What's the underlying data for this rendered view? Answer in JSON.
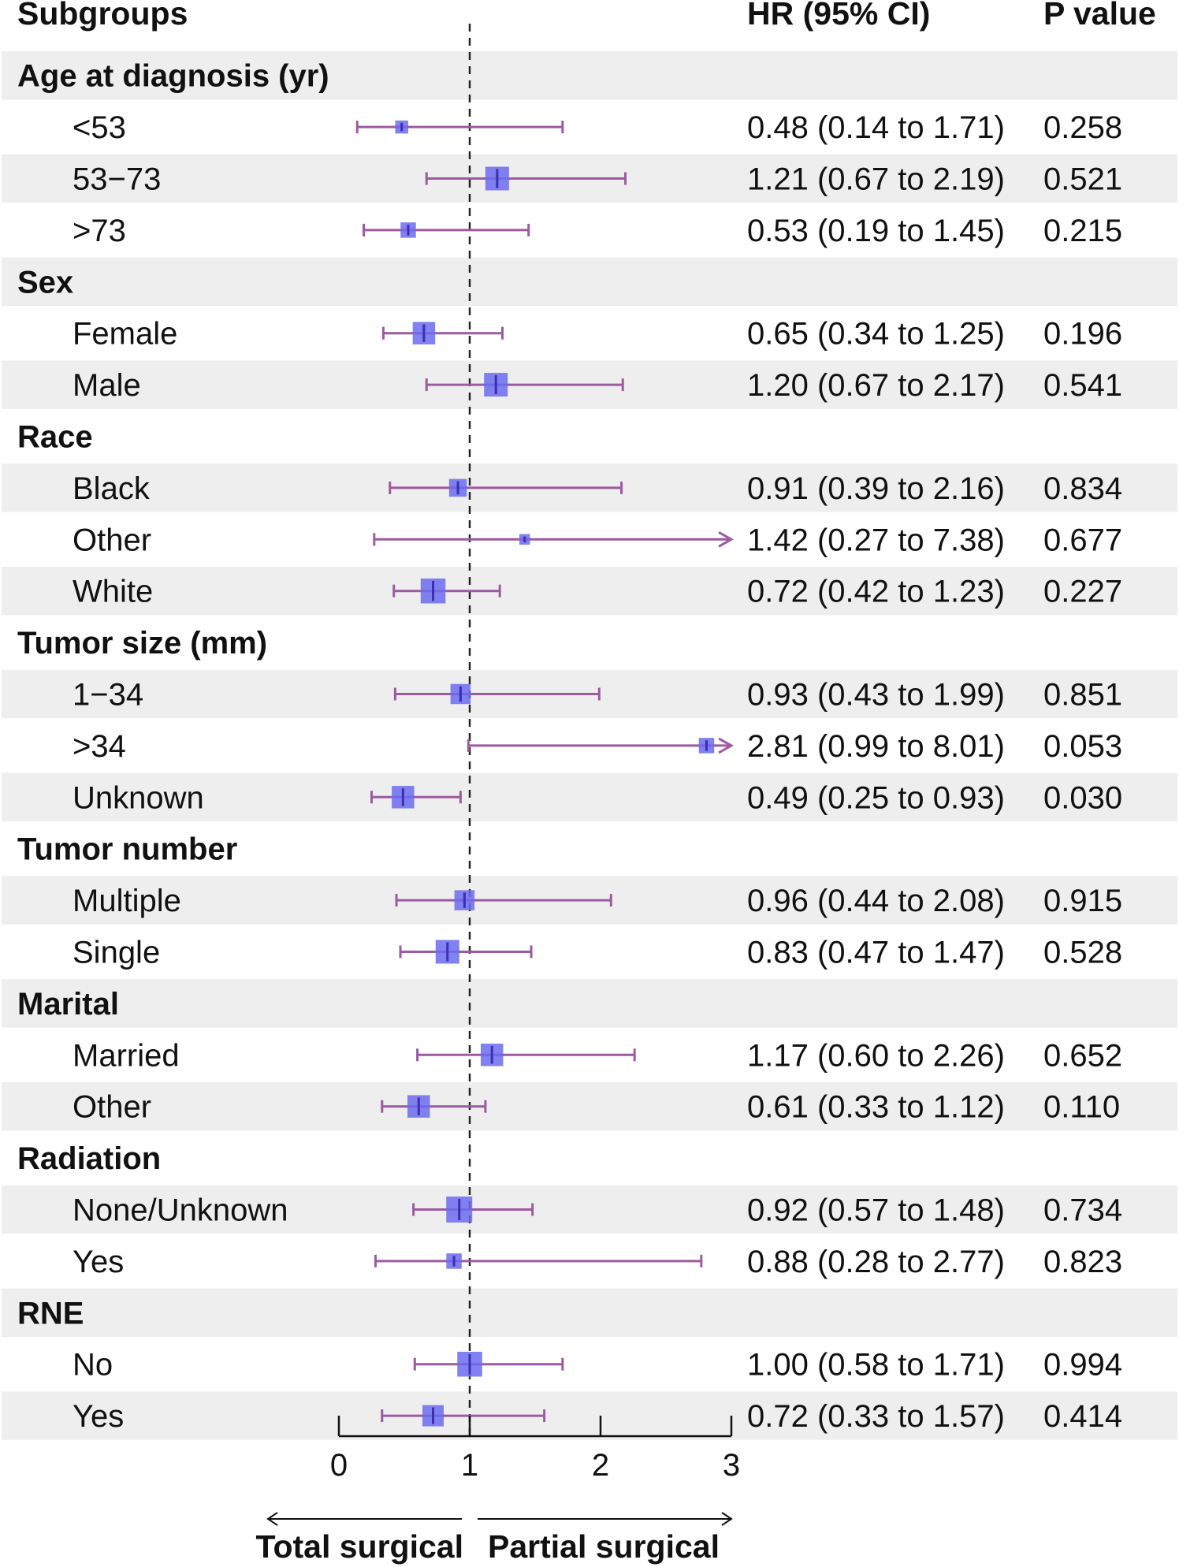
{
  "chart_data": {
    "type": "forest",
    "headers": {
      "subgroups": "Subgroups",
      "hr": "HR (95% CI)",
      "p": "P value"
    },
    "xlim": [
      0,
      3
    ],
    "ticks": [
      0,
      1,
      2,
      3
    ],
    "reference_line": 1,
    "direction_labels": {
      "left": "Total surgical",
      "right": "Partial surgical"
    },
    "colors": {
      "box": "#6b6bf0",
      "line": "#9c5aa0",
      "band": "#eeeeee",
      "text": "#111111"
    },
    "rows": [
      {
        "kind": "group",
        "label": "Age at diagnosis (yr)"
      },
      {
        "kind": "sub",
        "label": "<53",
        "hr": 0.48,
        "lo": 0.14,
        "hi": 1.71,
        "text": "0.48 (0.14 to 1.71)",
        "p": "0.258",
        "size": 0.55
      },
      {
        "kind": "sub",
        "label": "53−73",
        "hr": 1.21,
        "lo": 0.67,
        "hi": 2.19,
        "text": "1.21 (0.67 to 2.19)",
        "p": "0.521",
        "size": 1.0
      },
      {
        "kind": "sub",
        "label": ">73",
        "hr": 0.53,
        "lo": 0.19,
        "hi": 1.45,
        "text": "0.53 (0.19 to 1.45)",
        "p": "0.215",
        "size": 0.65
      },
      {
        "kind": "group",
        "label": "Sex"
      },
      {
        "kind": "sub",
        "label": "Female",
        "hr": 0.65,
        "lo": 0.34,
        "hi": 1.25,
        "text": "0.65 (0.34 to 1.25)",
        "p": "0.196",
        "size": 0.95
      },
      {
        "kind": "sub",
        "label": "Male",
        "hr": 1.2,
        "lo": 0.67,
        "hi": 2.17,
        "text": "1.20 (0.67 to 2.17)",
        "p": "0.541",
        "size": 1.0
      },
      {
        "kind": "group",
        "label": "Race"
      },
      {
        "kind": "sub",
        "label": "Black",
        "hr": 0.91,
        "lo": 0.39,
        "hi": 2.16,
        "text": "0.91 (0.39 to 2.16)",
        "p": "0.834",
        "size": 0.75
      },
      {
        "kind": "sub",
        "label": "Other",
        "hr": 1.42,
        "lo": 0.27,
        "hi": 7.38,
        "text": "1.42 (0.27 to 7.38)",
        "p": "0.677",
        "size": 0.45
      },
      {
        "kind": "sub",
        "label": "White",
        "hr": 0.72,
        "lo": 0.42,
        "hi": 1.23,
        "text": "0.72 (0.42 to 1.23)",
        "p": "0.227",
        "size": 1.05
      },
      {
        "kind": "group",
        "label": "Tumor size (mm)"
      },
      {
        "kind": "sub",
        "label": "1−34",
        "hr": 0.93,
        "lo": 0.43,
        "hi": 1.99,
        "text": "0.93 (0.43 to 1.99)",
        "p": "0.851",
        "size": 0.85
      },
      {
        "kind": "sub",
        "label": ">34",
        "hr": 2.81,
        "lo": 0.99,
        "hi": 8.01,
        "text": "2.81 (0.99 to 8.01)",
        "p": "0.053",
        "size": 0.65
      },
      {
        "kind": "sub",
        "label": "Unknown",
        "hr": 0.49,
        "lo": 0.25,
        "hi": 0.93,
        "text": "0.49 (0.25 to 0.93)",
        "p": "0.030",
        "size": 0.95
      },
      {
        "kind": "group",
        "label": "Tumor number"
      },
      {
        "kind": "sub",
        "label": "Multiple",
        "hr": 0.96,
        "lo": 0.44,
        "hi": 2.08,
        "text": "0.96 (0.44 to 2.08)",
        "p": "0.915",
        "size": 0.85
      },
      {
        "kind": "sub",
        "label": "Single",
        "hr": 0.83,
        "lo": 0.47,
        "hi": 1.47,
        "text": "0.83 (0.47 to 1.47)",
        "p": "0.528",
        "size": 1.0
      },
      {
        "kind": "group",
        "label": "Marital"
      },
      {
        "kind": "sub",
        "label": "Married",
        "hr": 1.17,
        "lo": 0.6,
        "hi": 2.26,
        "text": "1.17 (0.60 to 2.26)",
        "p": "0.652",
        "size": 0.95
      },
      {
        "kind": "sub",
        "label": "Other",
        "hr": 0.61,
        "lo": 0.33,
        "hi": 1.12,
        "text": "0.61 (0.33 to 1.12)",
        "p": "0.110",
        "size": 0.95
      },
      {
        "kind": "group",
        "label": "Radiation"
      },
      {
        "kind": "sub",
        "label": "None/Unknown",
        "hr": 0.92,
        "lo": 0.57,
        "hi": 1.48,
        "text": "0.92 (0.57 to 1.48)",
        "p": "0.734",
        "size": 1.1
      },
      {
        "kind": "sub",
        "label": "Yes",
        "hr": 0.88,
        "lo": 0.28,
        "hi": 2.77,
        "text": "0.88 (0.28 to 2.77)",
        "p": "0.823",
        "size": 0.65
      },
      {
        "kind": "group",
        "label": "RNE"
      },
      {
        "kind": "sub",
        "label": "No",
        "hr": 1.0,
        "lo": 0.58,
        "hi": 1.71,
        "text": "1.00 (0.58 to 1.71)",
        "p": "0.994",
        "size": 1.05
      },
      {
        "kind": "sub",
        "label": "Yes",
        "hr": 0.72,
        "lo": 0.33,
        "hi": 1.57,
        "text": "0.72 (0.33 to 1.57)",
        "p": "0.414",
        "size": 0.9
      }
    ]
  }
}
